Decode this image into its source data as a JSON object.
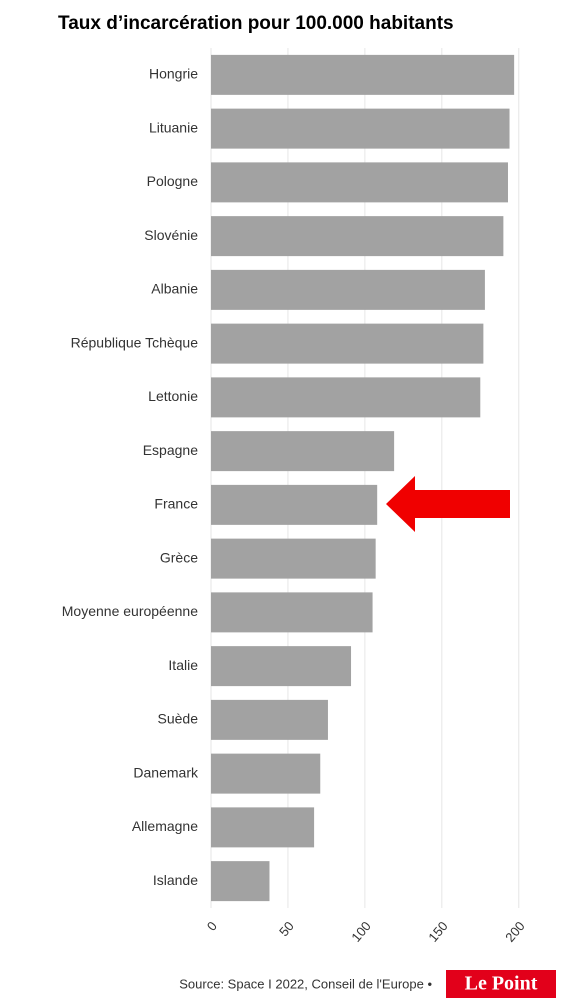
{
  "chart_data": {
    "type": "bar",
    "orientation": "horizontal",
    "title": "Taux d’incarcération pour 100.000 habitants",
    "categories": [
      "Hongrie",
      "Lituanie",
      "Pologne",
      "Slovénie",
      "Albanie",
      "République Tchèque",
      "Lettonie",
      "Espagne",
      "France",
      "Grèce",
      "Moyenne européenne",
      "Italie",
      "Suède",
      "Danemark",
      "Allemagne",
      "Islande"
    ],
    "values": [
      197,
      194,
      193,
      190,
      178,
      177,
      175,
      119,
      108,
      107,
      105,
      91,
      76,
      71,
      67,
      38
    ],
    "color": "#a2a2a2",
    "xlim": [
      0,
      232
    ],
    "xticks": [
      0,
      50,
      100,
      150,
      200
    ],
    "grid": true,
    "source": "Source: Space I 2022, Conseil de l'Europe •",
    "logo": "Le Point"
  }
}
